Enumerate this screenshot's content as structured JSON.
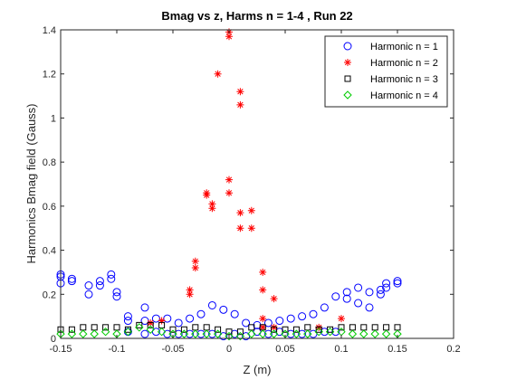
{
  "chart_data": {
    "type": "scatter",
    "title": "Bmag vs z, Harms n = 1-4 , Run 22",
    "xlabel": "Z (m)",
    "ylabel": "Harmonics Bmag field (Gauss)",
    "xlim": [
      -0.15,
      0.2
    ],
    "ylim": [
      0,
      1.4
    ],
    "xticks": [
      -0.15,
      -0.1,
      -0.05,
      0,
      0.05,
      0.1,
      0.15,
      0.2
    ],
    "xtick_labels": [
      "-0.15",
      "-0.1",
      "-0.05",
      "0",
      "0.05",
      "0.1",
      "0.15",
      "0.2"
    ],
    "yticks": [
      0,
      0.2,
      0.4,
      0.6,
      0.8,
      1,
      1.2,
      1.4
    ],
    "ytick_labels": [
      "0",
      "0.2",
      "0.4",
      "0.6",
      "0.8",
      "1",
      "1.2",
      "1.4"
    ],
    "grid": false,
    "legend_position": "top-right",
    "series": [
      {
        "name": "Harmonic n = 1",
        "marker": "circle",
        "color": "#0000ff",
        "x": [
          -0.15,
          -0.15,
          -0.15,
          -0.14,
          -0.14,
          -0.125,
          -0.125,
          -0.115,
          -0.115,
          -0.105,
          -0.105,
          -0.1,
          -0.1,
          -0.09,
          -0.09,
          -0.09,
          -0.075,
          -0.075,
          -0.075,
          -0.065,
          -0.065,
          -0.055,
          -0.055,
          -0.045,
          -0.045,
          -0.035,
          -0.035,
          -0.025,
          -0.025,
          -0.015,
          -0.015,
          -0.005,
          -0.005,
          0.005,
          0.005,
          0.015,
          0.015,
          0.025,
          0.025,
          0.035,
          0.035,
          0.045,
          0.045,
          0.055,
          0.055,
          0.065,
          0.065,
          0.075,
          0.075,
          0.085,
          0.085,
          0.095,
          0.095,
          0.105,
          0.105,
          0.115,
          0.115,
          0.125,
          0.125,
          0.135,
          0.135,
          0.14,
          0.14,
          0.15,
          0.15
        ],
        "y": [
          0.29,
          0.28,
          0.25,
          0.27,
          0.26,
          0.24,
          0.2,
          0.26,
          0.24,
          0.29,
          0.27,
          0.21,
          0.19,
          0.1,
          0.08,
          0.03,
          0.14,
          0.08,
          0.02,
          0.09,
          0.03,
          0.09,
          0.02,
          0.07,
          0.02,
          0.09,
          0.02,
          0.11,
          0.02,
          0.15,
          0.02,
          0.13,
          0.01,
          0.11,
          0.02,
          0.07,
          0.01,
          0.06,
          0.03,
          0.07,
          0.02,
          0.08,
          0.03,
          0.09,
          0.02,
          0.1,
          0.02,
          0.11,
          0.02,
          0.14,
          0.03,
          0.19,
          0.03,
          0.21,
          0.18,
          0.23,
          0.16,
          0.21,
          0.14,
          0.22,
          0.2,
          0.25,
          0.23,
          0.26,
          0.25
        ]
      },
      {
        "name": "Harmonic n = 2",
        "marker": "asterisk",
        "color": "#ff0000",
        "x": [
          -0.035,
          -0.035,
          -0.03,
          -0.03,
          -0.02,
          -0.02,
          -0.015,
          -0.015,
          -0.01,
          0,
          0,
          0,
          0,
          0.01,
          0.01,
          0.01,
          0.01,
          0.02,
          0.02,
          0.03,
          0.03,
          0.03,
          0.03,
          0.04,
          0.04,
          0.1,
          -0.07,
          -0.06,
          0.08
        ],
        "y": [
          0.22,
          0.2,
          0.35,
          0.32,
          0.66,
          0.65,
          0.61,
          0.59,
          1.2,
          1.39,
          1.37,
          0.72,
          0.66,
          1.12,
          1.06,
          0.57,
          0.5,
          0.58,
          0.5,
          0.3,
          0.22,
          0.09,
          0.05,
          0.18,
          0.05,
          0.09,
          0.07,
          0.08,
          0.05
        ]
      },
      {
        "name": "Harmonic n = 3",
        "marker": "square",
        "color": "#000000",
        "x": [
          -0.15,
          -0.14,
          -0.13,
          -0.12,
          -0.11,
          -0.1,
          -0.09,
          -0.08,
          -0.07,
          -0.06,
          -0.05,
          -0.04,
          -0.03,
          -0.02,
          -0.01,
          0,
          0.01,
          0.02,
          0.03,
          0.04,
          0.05,
          0.06,
          0.07,
          0.08,
          0.09,
          0.1,
          0.11,
          0.12,
          0.13,
          0.14,
          0.15
        ],
        "y": [
          0.04,
          0.04,
          0.05,
          0.05,
          0.05,
          0.05,
          0.04,
          0.06,
          0.06,
          0.06,
          0.04,
          0.04,
          0.05,
          0.05,
          0.04,
          0.03,
          0.03,
          0.05,
          0.05,
          0.04,
          0.04,
          0.04,
          0.05,
          0.04,
          0.04,
          0.05,
          0.05,
          0.05,
          0.05,
          0.05,
          0.05
        ]
      },
      {
        "name": "Harmonic n = 4",
        "marker": "diamond",
        "color": "#00cc00",
        "x": [
          -0.15,
          -0.14,
          -0.13,
          -0.12,
          -0.11,
          -0.1,
          -0.09,
          -0.08,
          -0.07,
          -0.06,
          -0.05,
          -0.04,
          -0.03,
          -0.02,
          -0.01,
          0,
          0.01,
          0.02,
          0.03,
          0.04,
          0.05,
          0.06,
          0.07,
          0.08,
          0.09,
          0.1,
          0.11,
          0.12,
          0.13,
          0.14,
          0.15
        ],
        "y": [
          0.02,
          0.02,
          0.02,
          0.02,
          0.03,
          0.02,
          0.03,
          0.05,
          0.04,
          0.03,
          0.02,
          0.02,
          0.02,
          0.02,
          0.02,
          0.01,
          0.01,
          0.02,
          0.02,
          0.02,
          0.02,
          0.02,
          0.02,
          0.03,
          0.03,
          0.03,
          0.02,
          0.02,
          0.02,
          0.02,
          0.02
        ]
      }
    ]
  }
}
